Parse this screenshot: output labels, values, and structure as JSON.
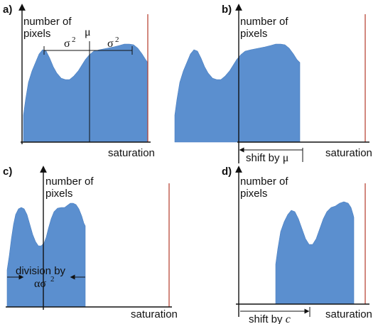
{
  "panels": [
    {
      "letter": "a)",
      "ylabel_line1": "number of",
      "ylabel_line2": "pixels",
      "xlabel": "saturation",
      "mu": "μ",
      "sigma_left": "σ",
      "sigma_left_sup": "2",
      "sigma_right": "σ",
      "sigma_right_sup": "2"
    },
    {
      "letter": "b)",
      "ylabel_line1": "number of",
      "ylabel_line2": "pixels",
      "xlabel": "saturation",
      "shift_text": "shift by ",
      "shift_symbol": "μ"
    },
    {
      "letter": "c)",
      "ylabel_line1": "number of",
      "ylabel_line2": "pixels",
      "xlabel": "saturation",
      "division_line1": "division by",
      "division_symbol": "ασ",
      "division_sup": "2"
    },
    {
      "letter": "d)",
      "ylabel_line1": "number of",
      "ylabel_line2": "pixels",
      "xlabel": "saturation",
      "shift_text": "shift by ",
      "shift_symbol": "c"
    }
  ],
  "colors": {
    "histogram_fill": "#5b8fcf",
    "boundary_line": "#b33a2a",
    "axis": "#111111"
  }
}
